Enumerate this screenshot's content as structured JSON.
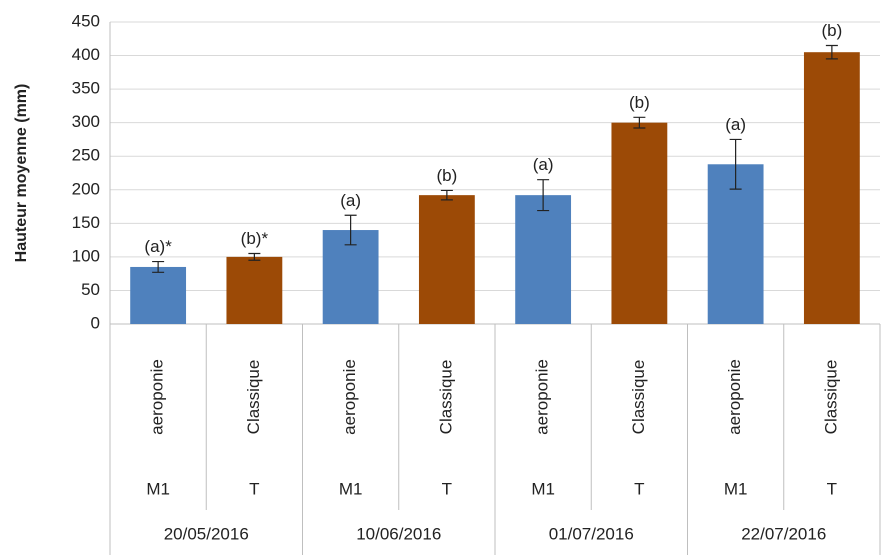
{
  "chart_data": {
    "type": "bar",
    "y_label": "Hauteur moyenne (mm)",
    "categories": [
      "aeroponie",
      "Classique",
      "aeroponie",
      "Classique",
      "aeroponie",
      "Classique",
      "aeroponie",
      "Classique"
    ],
    "subcategories": [
      "M1",
      "T",
      "M1",
      "T",
      "M1",
      "T",
      "M1",
      "T"
    ],
    "dates": [
      "20/05/2016",
      "10/06/2016",
      "01/07/2016",
      "22/07/2016"
    ],
    "values": [
      85,
      100,
      140,
      192,
      192,
      300,
      238,
      405
    ],
    "errors": [
      8,
      5,
      22,
      7,
      23,
      8,
      37,
      10
    ],
    "annotations": [
      "(a)*",
      "(b)*",
      "(a)",
      "(b)",
      "(a)",
      "(b)",
      "(a)",
      "(b)"
    ],
    "colors": [
      "#4f81bd",
      "#9c4a06",
      "#4f81bd",
      "#9c4a06",
      "#4f81bd",
      "#9c4a06",
      "#4f81bd",
      "#9c4a06"
    ],
    "ylim": [
      0,
      450
    ],
    "yticks": [
      0,
      50,
      100,
      150,
      200,
      250,
      300,
      350,
      400,
      450
    ],
    "grid": true
  }
}
